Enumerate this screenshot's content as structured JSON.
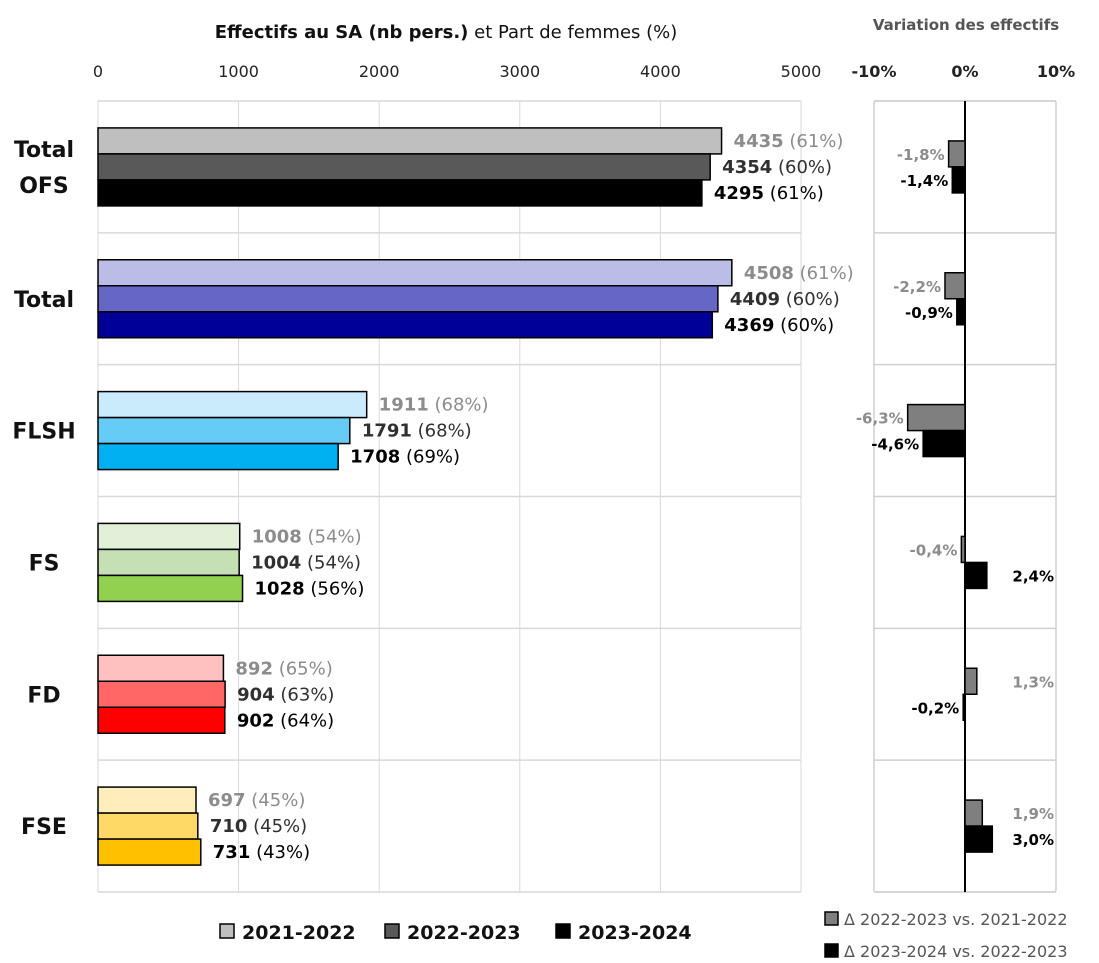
{
  "chart_data": [
    {
      "type": "bar",
      "orientation": "horizontal",
      "title_bold": "Effectifs au SA (nb pers.)",
      "title_rest": " et Part de femmes (%)",
      "xlim": [
        0,
        5000
      ],
      "xticks": [
        "0",
        "1000",
        "2000",
        "3000",
        "4000",
        "5000"
      ],
      "grid": "vertical",
      "legend_position": "bottom",
      "series": [
        {
          "name": "2021-2022",
          "shade": "light",
          "label_color": "#8c8c8c"
        },
        {
          "name": "2022-2023",
          "shade": "mid",
          "label_color": "#303030"
        },
        {
          "name": "2023-2024",
          "shade": "dark",
          "label_color": "#000000"
        }
      ],
      "groups": [
        {
          "label_lines": [
            "Total",
            "OFS"
          ],
          "colors": [
            "#bfbfbf",
            "#595959",
            "#000000"
          ],
          "values": [
            4435,
            4354,
            4295
          ],
          "labels": [
            "4435",
            "4354",
            "4295"
          ],
          "pct": [
            "(61%)",
            "(60%)",
            "(61%)"
          ]
        },
        {
          "label_lines": [
            "Total"
          ],
          "colors": [
            "#bcbde6",
            "#6666c7",
            "#000099"
          ],
          "values": [
            4508,
            4409,
            4369
          ],
          "labels": [
            "4508",
            "4409",
            "4369"
          ],
          "pct": [
            "(61%)",
            "(60%)",
            "(60%)"
          ]
        },
        {
          "label_lines": [
            "FLSH"
          ],
          "colors": [
            "#c9ebfb",
            "#66ccf5",
            "#00b0f0"
          ],
          "values": [
            1911,
            1791,
            1708
          ],
          "labels": [
            "1911",
            "1791",
            "1708"
          ],
          "pct": [
            "(68%)",
            "(68%)",
            "(69%)"
          ]
        },
        {
          "label_lines": [
            "FS"
          ],
          "colors": [
            "#e2f0d9",
            "#c5e0b4",
            "#92d050"
          ],
          "values": [
            1008,
            1004,
            1028
          ],
          "labels": [
            "1008",
            "1004",
            "1028"
          ],
          "pct": [
            "(54%)",
            "(54%)",
            "(56%)"
          ]
        },
        {
          "label_lines": [
            "FD"
          ],
          "colors": [
            "#ffc0c0",
            "#ff6666",
            "#ff0000"
          ],
          "values": [
            892,
            904,
            902
          ],
          "labels": [
            "892",
            "904",
            "902"
          ],
          "pct": [
            "(65%)",
            "(63%)",
            "(64%)"
          ]
        },
        {
          "label_lines": [
            "FSE"
          ],
          "colors": [
            "#ffeebb",
            "#ffd966",
            "#ffc000"
          ],
          "values": [
            697,
            710,
            731
          ],
          "labels": [
            "697",
            "710",
            "731"
          ],
          "pct": [
            "(45%)",
            "(45%)",
            "(43%)"
          ]
        }
      ]
    },
    {
      "type": "bar",
      "orientation": "horizontal",
      "title": "Variation des effectifs",
      "xlim": [
        -10,
        10
      ],
      "xticks": [
        "-10%",
        "0%",
        "10%"
      ],
      "legend_position": "bottom",
      "series": [
        {
          "name": "Δ 2022-2023 vs. 2021-2022",
          "color": "#7f7f7f",
          "label_color": "#8c8c8c",
          "values": [
            -1.8,
            -2.2,
            -6.3,
            -0.4,
            1.3,
            1.9
          ],
          "labels": [
            "-1,8%",
            "-2,2%",
            "-6,3%",
            "-0,4%",
            "1,3%",
            "1,9%"
          ]
        },
        {
          "name": "Δ 2023-2024 vs. 2022-2023",
          "color": "#000000",
          "label_color": "#000000",
          "values": [
            -1.4,
            -0.9,
            -4.6,
            2.4,
            -0.2,
            3.0
          ],
          "labels": [
            "-1,4%",
            "-0,9%",
            "-4,6%",
            "2,4%",
            "-0,2%",
            "3,0%"
          ]
        }
      ]
    }
  ]
}
